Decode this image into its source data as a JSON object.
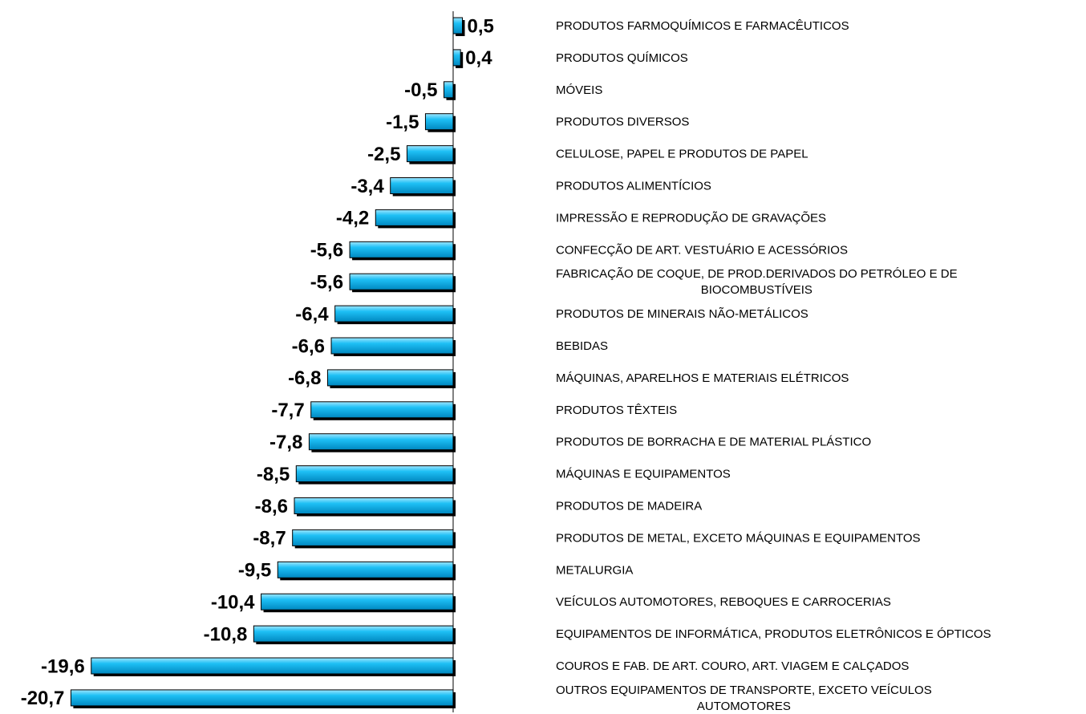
{
  "chart_data": {
    "type": "hbar",
    "categories": [
      "PRODUTOS FARMOQUÍMICOS E FARMACÊUTICOS",
      "PRODUTOS QUÍMICOS",
      "MÓVEIS",
      "PRODUTOS DIVERSOS",
      "CELULOSE, PAPEL E PRODUTOS DE PAPEL",
      "PRODUTOS ALIMENTÍCIOS",
      "IMPRESSÃO E REPRODUÇÃO DE GRAVAÇÕES",
      "CONFECÇÃO DE ART. VESTUÁRIO E ACESSÓRIOS",
      "FABRICAÇÃO DE COQUE, DE PROD.DERIVADOS DO PETRÓLEO E DE\nBIOCOMBUSTÍVEIS",
      "PRODUTOS DE MINERAIS NÃO-METÁLICOS",
      "BEBIDAS",
      "MÁQUINAS, APARELHOS E MATERIAIS ELÉTRICOS",
      "PRODUTOS TÊXTEIS",
      "PRODUTOS DE BORRACHA E DE MATERIAL PLÁSTICO",
      "MÁQUINAS E EQUIPAMENTOS",
      "PRODUTOS DE MADEIRA",
      "PRODUTOS DE METAL, EXCETO MÁQUINAS E EQUIPAMENTOS",
      "METALURGIA",
      "VEÍCULOS AUTOMOTORES, REBOQUES E CARROCERIAS",
      "EQUIPAMENTOS DE INFORMÁTICA, PRODUTOS ELETRÔNICOS E ÓPTICOS",
      "COUROS E FAB. DE ART. COURO, ART. VIAGEM E CALÇADOS",
      "OUTROS EQUIPAMENTOS DE TRANSPORTE, EXCETO VEÍCULOS\nAUTOMOTORES"
    ],
    "values": [
      0.5,
      0.4,
      -0.5,
      -1.5,
      -2.5,
      -3.4,
      -4.2,
      -5.6,
      -5.6,
      -6.4,
      -6.6,
      -6.8,
      -7.7,
      -7.8,
      -8.5,
      -8.6,
      -8.7,
      -9.5,
      -10.4,
      -10.8,
      -19.6,
      -20.7
    ],
    "value_labels": [
      "0,5",
      "0,4",
      "-0,5",
      "-1,5",
      "-2,5",
      "-3,4",
      "-4,2",
      "-5,6",
      "-5,6",
      "-6,4",
      "-6,6",
      "-6,8",
      "-7,7",
      "-7,8",
      "-8,5",
      "-8,6",
      "-8,7",
      "-9,5",
      "-10,4",
      "-10,8",
      "-19,6",
      "-20,7"
    ],
    "color": "#00b0f0",
    "xlim": [
      -21.5,
      1
    ]
  }
}
